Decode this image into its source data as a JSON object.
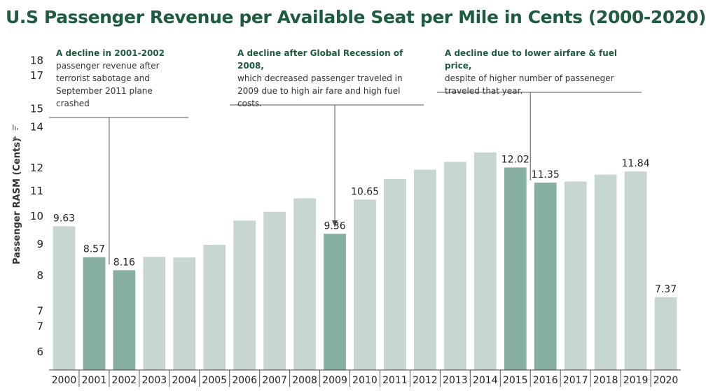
{
  "title": "U.S Passenger Revenue per Available Seat per Mile in Cents (2000-2020)",
  "colors": {
    "bar": "#c7d6d1",
    "highlight": "#87b0a1",
    "title": "#1e5b3f",
    "annotation_heading": "#1e5b3f"
  },
  "chart_data": {
    "type": "bar",
    "ylabel": "Passenger RASM (Cents)",
    "scale": "log",
    "ylim": [
      5.6,
      19.5
    ],
    "y_ticks": [
      {
        "value": 6,
        "label": "6"
      },
      {
        "value": 6.6,
        "label": "7"
      },
      {
        "value": 7,
        "label": "7"
      },
      {
        "value": 8,
        "label": "8"
      },
      {
        "value": 9,
        "label": "9"
      },
      {
        "value": 10,
        "label": "10"
      },
      {
        "value": 11,
        "label": "11"
      },
      {
        "value": 12,
        "label": "12"
      },
      {
        "value": 14,
        "label": "14"
      },
      {
        "value": 15,
        "label": "15"
      },
      {
        "value": 17,
        "label": "17"
      },
      {
        "value": 18,
        "label": "18"
      }
    ],
    "categories": [
      "2000",
      "2001",
      "2002",
      "2003",
      "2004",
      "2005",
      "2006",
      "2007",
      "2008",
      "2009",
      "2010",
      "2011",
      "2012",
      "2013",
      "2014",
      "2015",
      "2016",
      "2017",
      "2018",
      "2019",
      "2020"
    ],
    "values": [
      9.63,
      8.57,
      8.16,
      8.58,
      8.56,
      8.98,
      9.84,
      10.17,
      10.7,
      9.36,
      10.65,
      11.51,
      11.92,
      12.28,
      12.72,
      12.02,
      11.35,
      11.4,
      11.7,
      11.84,
      7.37
    ],
    "highlighted": [
      "2001",
      "2002",
      "2009",
      "2015",
      "2016"
    ],
    "data_labels": [
      {
        "category": "2000",
        "text": "9.63"
      },
      {
        "category": "2001",
        "text": "8.57"
      },
      {
        "category": "2002",
        "text": "8.16"
      },
      {
        "category": "2009",
        "text": "9.36"
      },
      {
        "category": "2010",
        "text": "10.65"
      },
      {
        "category": "2015",
        "text": "12.02"
      },
      {
        "category": "2016",
        "text": "11.35"
      },
      {
        "category": "2019",
        "text": "11.84"
      },
      {
        "category": "2020",
        "text": "7.37"
      }
    ],
    "annotations": [
      {
        "heading": "A decline in 2001-2002",
        "text": "passenger revenue after terrorist sabotage and September 2011 plane crashed"
      },
      {
        "heading": "A decline after Global Recession of 2008,",
        "text": "which decreased passenger traveled in 2009 due to high air fare and high fuel costs."
      },
      {
        "heading": "A decline due to lower airfare & fuel price,",
        "text": "despite of higher number of passeneger traveled that year."
      }
    ]
  }
}
